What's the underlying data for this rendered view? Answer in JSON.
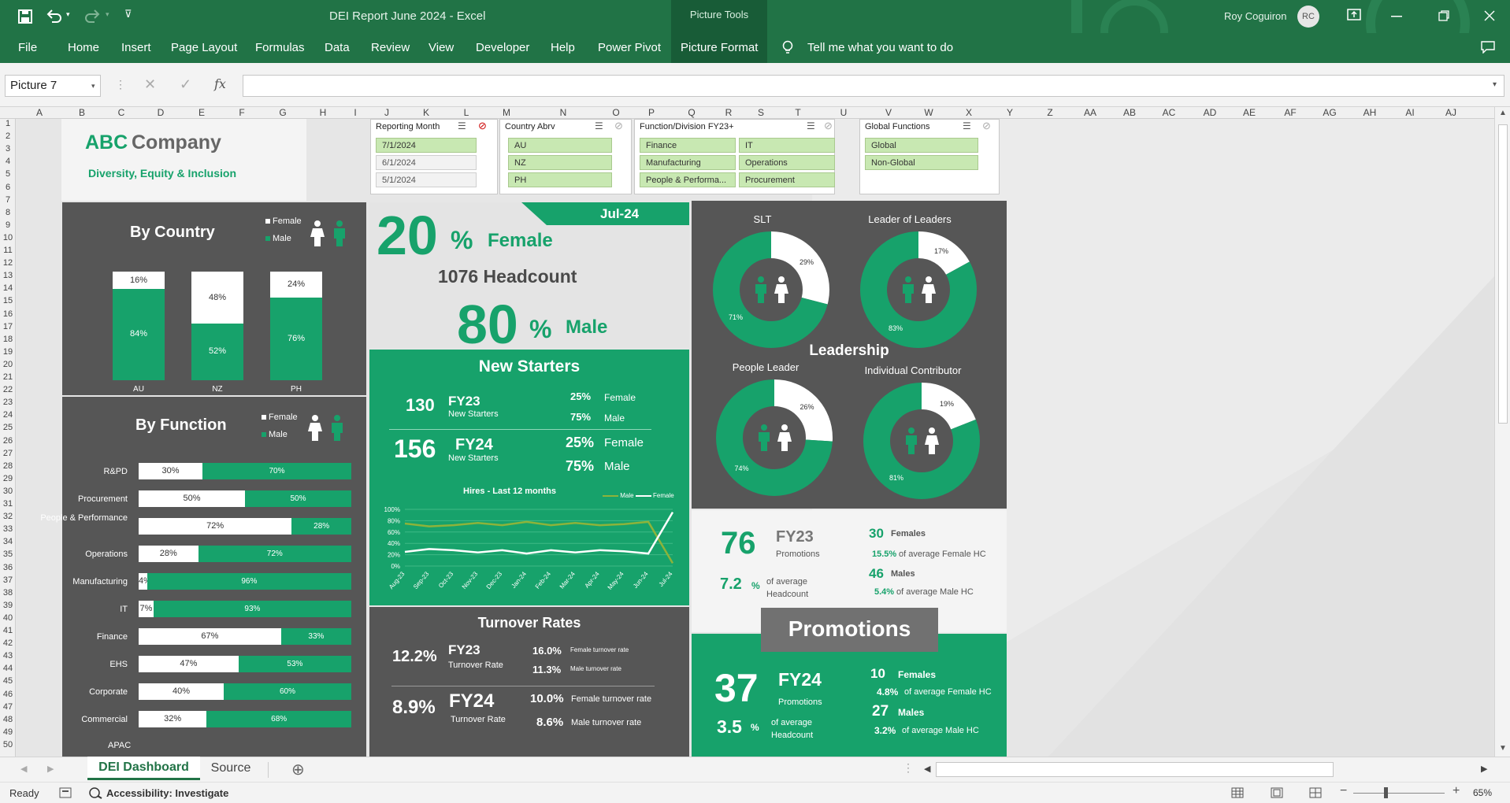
{
  "window": {
    "title": "DEI Report June 2024  -  Excel",
    "context_tab_header": "Picture Tools",
    "user_name": "Roy Coguiron",
    "user_initials": "RC"
  },
  "ribbon": {
    "tabs": [
      "File",
      "Home",
      "Insert",
      "Page Layout",
      "Formulas",
      "Data",
      "Review",
      "View",
      "Developer",
      "Help",
      "Power Pivot",
      "Picture Format"
    ],
    "tell_me": "Tell me what you want to do"
  },
  "formula_bar": {
    "name_box": "Picture 7",
    "fx": "fx"
  },
  "columns": [
    "A",
    "B",
    "C",
    "D",
    "E",
    "F",
    "G",
    "H",
    "I",
    "J",
    "K",
    "L",
    "M",
    "N",
    "O",
    "P",
    "Q",
    "R",
    "S",
    "T",
    "U",
    "V",
    "W",
    "X",
    "Y",
    "Z",
    "AA",
    "AB",
    "AC",
    "AD",
    "AE",
    "AF",
    "AG",
    "AH",
    "AI",
    "AJ"
  ],
  "rows": [
    "1",
    "2",
    "3",
    "4",
    "5",
    "6",
    "7",
    "8",
    "9",
    "10",
    "11",
    "12",
    "13",
    "14",
    "15",
    "16",
    "17",
    "18",
    "19",
    "20",
    "21",
    "22",
    "23",
    "24",
    "25",
    "26",
    "27",
    "28",
    "29",
    "30",
    "31",
    "32",
    "33",
    "34",
    "35",
    "36",
    "37",
    "38",
    "39",
    "40",
    "41",
    "42",
    "43",
    "44",
    "45",
    "46",
    "47",
    "48",
    "49",
    "50"
  ],
  "header": {
    "company_a": "ABC",
    "company_b": "Company",
    "subtitle": "Diversity, Equity & Inclusion"
  },
  "slicers": {
    "reporting_month": {
      "title": "Reporting Month",
      "items": [
        "7/1/2024",
        "6/1/2024",
        "5/1/2024"
      ]
    },
    "country": {
      "title": "Country Abrv",
      "items": [
        "AU",
        "NZ",
        "PH"
      ]
    },
    "function": {
      "title": "Function/Division FY23+",
      "items": [
        "Finance",
        "IT",
        "Manufacturing",
        "Operations",
        "People & Performa...",
        "Procurement"
      ]
    },
    "global": {
      "title": "Global Functions",
      "items": [
        "Global",
        "Non-Global"
      ]
    }
  },
  "by_country": {
    "title": "By Country",
    "legend_female": "Female",
    "legend_male": "Male",
    "chart_data": {
      "type": "bar",
      "categories": [
        "AU",
        "NZ",
        "PH"
      ],
      "series": [
        {
          "name": "Female",
          "values": [
            16,
            48,
            24
          ],
          "labels": [
            "16%",
            "48%",
            "24%"
          ]
        },
        {
          "name": "Male",
          "values": [
            84,
            52,
            76
          ],
          "labels": [
            "84%",
            "52%",
            "76%"
          ]
        }
      ]
    }
  },
  "by_function": {
    "title": "By Function",
    "legend_female": "Female",
    "legend_male": "Male",
    "trailing_label": "APAC",
    "chart_data": {
      "type": "bar",
      "categories": [
        "R&PD",
        "Procurement",
        "People & Performance",
        "Operations",
        "Manufacturing",
        "IT",
        "Finance",
        "EHS",
        "Corporate",
        "Commercial"
      ],
      "series": [
        {
          "name": "Female",
          "values": [
            30,
            50,
            72,
            28,
            4,
            7,
            67,
            47,
            40,
            32
          ],
          "labels": [
            "30%",
            "50%",
            "72%",
            "28%",
            "4%",
            "7%",
            "67%",
            "47%",
            "40%",
            "32%"
          ]
        },
        {
          "name": "Male",
          "values": [
            70,
            50,
            28,
            72,
            96,
            93,
            33,
            53,
            60,
            68
          ],
          "labels": [
            "70%",
            "50%",
            "28%",
            "72%",
            "96%",
            "93%",
            "33%",
            "53%",
            "60%",
            "68%"
          ]
        }
      ]
    }
  },
  "summary": {
    "month": "Jul-24",
    "female_pct": "20",
    "female_label": "Female",
    "headcount": "1076 Headcount",
    "male_pct": "80",
    "male_label": "Male",
    "pct": "%"
  },
  "new_starters": {
    "title": "New Starters",
    "fy23_count": "130",
    "fy23_label": "FY23",
    "fy23_sub": "New Starters",
    "fy23_female_pct": "25%",
    "fy23_male_pct": "75%",
    "fy24_count": "156",
    "fy24_label": "FY24",
    "fy24_sub": "New Starters",
    "fy24_female_pct": "25%",
    "fy24_male_pct": "75%",
    "female": "Female",
    "male": "Male",
    "chart_title": "Hires - Last 12 months",
    "chart_data": {
      "type": "line",
      "x": [
        "Aug-23",
        "Sep-23",
        "Oct-23",
        "Nov-23",
        "Dec-23",
        "Jan-24",
        "Feb-24",
        "Mar-24",
        "Apr-24",
        "May-24",
        "Jun-24",
        "Jul-24"
      ],
      "yticks": [
        "100%",
        "80%",
        "60%",
        "40%",
        "20%",
        "0%"
      ],
      "ylim": [
        0,
        100
      ],
      "series": [
        {
          "name": "Male",
          "values": [
            75,
            70,
            72,
            76,
            72,
            78,
            72,
            76,
            72,
            74,
            78,
            5
          ]
        },
        {
          "name": "Female",
          "values": [
            25,
            30,
            28,
            24,
            28,
            22,
            28,
            24,
            28,
            26,
            22,
            95
          ]
        }
      ]
    }
  },
  "turnover": {
    "title": "Turnover Rates",
    "fy23_rate": "12.2%",
    "fy23_label": "FY23",
    "fy23_sub": "Turnover Rate",
    "fy23_female": "16.0%",
    "fy23_female_label": "Female turnover rate",
    "fy23_male": "11.3%",
    "fy23_male_label": "Male turnover rate",
    "fy24_rate": "8.9%",
    "fy24_label": "FY24",
    "fy24_sub": "Turnover Rate",
    "fy24_female": "10.0%",
    "fy24_female_label": "Female turnover rate",
    "fy24_male": "8.6%",
    "fy24_male_label": "Male turnover rate"
  },
  "leadership": {
    "title": "Leadership",
    "chart_data": {
      "type": "pie",
      "charts": [
        {
          "name": "SLT",
          "male": 71,
          "female": 29,
          "male_label": "71%",
          "female_label": "29%"
        },
        {
          "name": "Leader of Leaders",
          "male": 83,
          "female": 17,
          "male_label": "83%",
          "female_label": "17%"
        },
        {
          "name": "People Leader",
          "male": 74,
          "female": 26,
          "male_label": "74%",
          "female_label": "26%"
        },
        {
          "name": "Individual Contributor",
          "male": 81,
          "female": 19,
          "male_label": "81%",
          "female_label": "19%"
        }
      ]
    }
  },
  "promotions": {
    "title": "Promotions",
    "fy23_count": "76",
    "fy23_label": "FY23",
    "fy23_sub": "Promotions",
    "fy23_pct": "7.2",
    "fy23_pct_sub_a": "of average",
    "fy23_pct_sub_b": "Headcount",
    "fy23_females": "30",
    "fy23_females_label": "Females",
    "fy23_females_pct": "15.5%",
    "fy23_females_pct_label": "of average Female HC",
    "fy23_males": "46",
    "fy23_males_label": "Males",
    "fy23_males_pct": "5.4%",
    "fy23_males_pct_label": "of average Male HC",
    "fy24_count": "37",
    "fy24_label": "FY24",
    "fy24_sub": "Promotions",
    "fy24_pct": "3.5",
    "fy24_pct_sub_a": "of average",
    "fy24_pct_sub_b": "Headcount",
    "fy24_females": "10",
    "fy24_females_label": "Females",
    "fy24_females_pct": "4.8%",
    "fy24_females_pct_label": "of average Female HC",
    "fy24_males": "27",
    "fy24_males_label": "Males",
    "fy24_males_pct": "3.2%",
    "fy24_males_pct_label": "of average Male HC",
    "pct": "%"
  },
  "sheets": {
    "active": "DEI Dashboard",
    "other": "Source"
  },
  "status": {
    "ready": "Ready",
    "accessibility": "Accessibility: Investigate",
    "zoom": "65%"
  },
  "colors": {
    "green": "#17a26b",
    "dark": "#565656",
    "excel": "#217346"
  }
}
